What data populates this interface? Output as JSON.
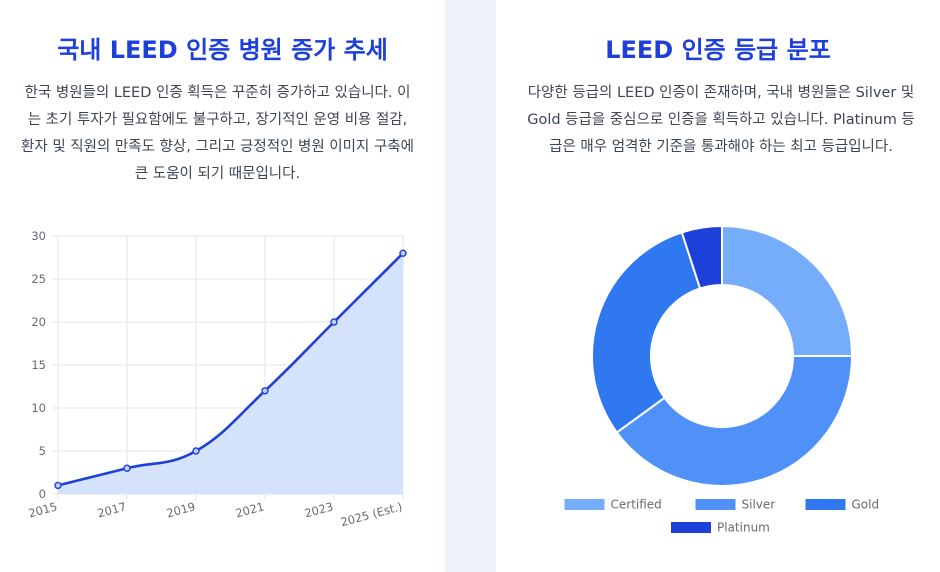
{
  "left_panel": {
    "title": "국내 LEED 인증 병원 증가 추세",
    "description": "한국 병원들의 LEED 인증 획득은 꾸준히 증가하고 있습니다. 이는 초기 투자가 필요함에도 불구하고, 장기적인 운영 비용 절감, 환자 및 직원의 만족도 향상, 그리고 긍정적인 병원 이미지 구축에 큰 도움이 되기 때문입니다."
  },
  "right_panel": {
    "title": "LEED 인증 등급 분포",
    "description": "다양한 등급의 LEED 인증이 존재하며, 국내 병원들은 Silver 및 Gold 등급을 중심으로 인증을 획득하고 있습니다. Platinum 등급은 매우 엄격한 기준을 통과해야 하는 최고 등급입니다."
  },
  "colors": {
    "line": "#1d40d8",
    "area_fill": "#d6e3fd",
    "certified": "#76adfb",
    "silver": "#4f91f7",
    "gold": "#2f78f0",
    "platinum": "#1d40d8"
  },
  "chart_data": [
    {
      "type": "area",
      "x": [
        "2015",
        "2017",
        "2019",
        "2021",
        "2023",
        "2025 (Est.)"
      ],
      "values": [
        1,
        3,
        5,
        12,
        20,
        28
      ],
      "y_ticks": [
        0,
        5,
        10,
        15,
        20,
        25,
        30
      ],
      "ylim": [
        0,
        30
      ],
      "grid": true,
      "legend": "none"
    },
    {
      "type": "pie",
      "variant": "doughnut",
      "categories": [
        "Certified",
        "Silver",
        "Gold",
        "Platinum"
      ],
      "values": [
        25,
        40,
        30,
        5
      ],
      "legend": "bottom"
    }
  ]
}
